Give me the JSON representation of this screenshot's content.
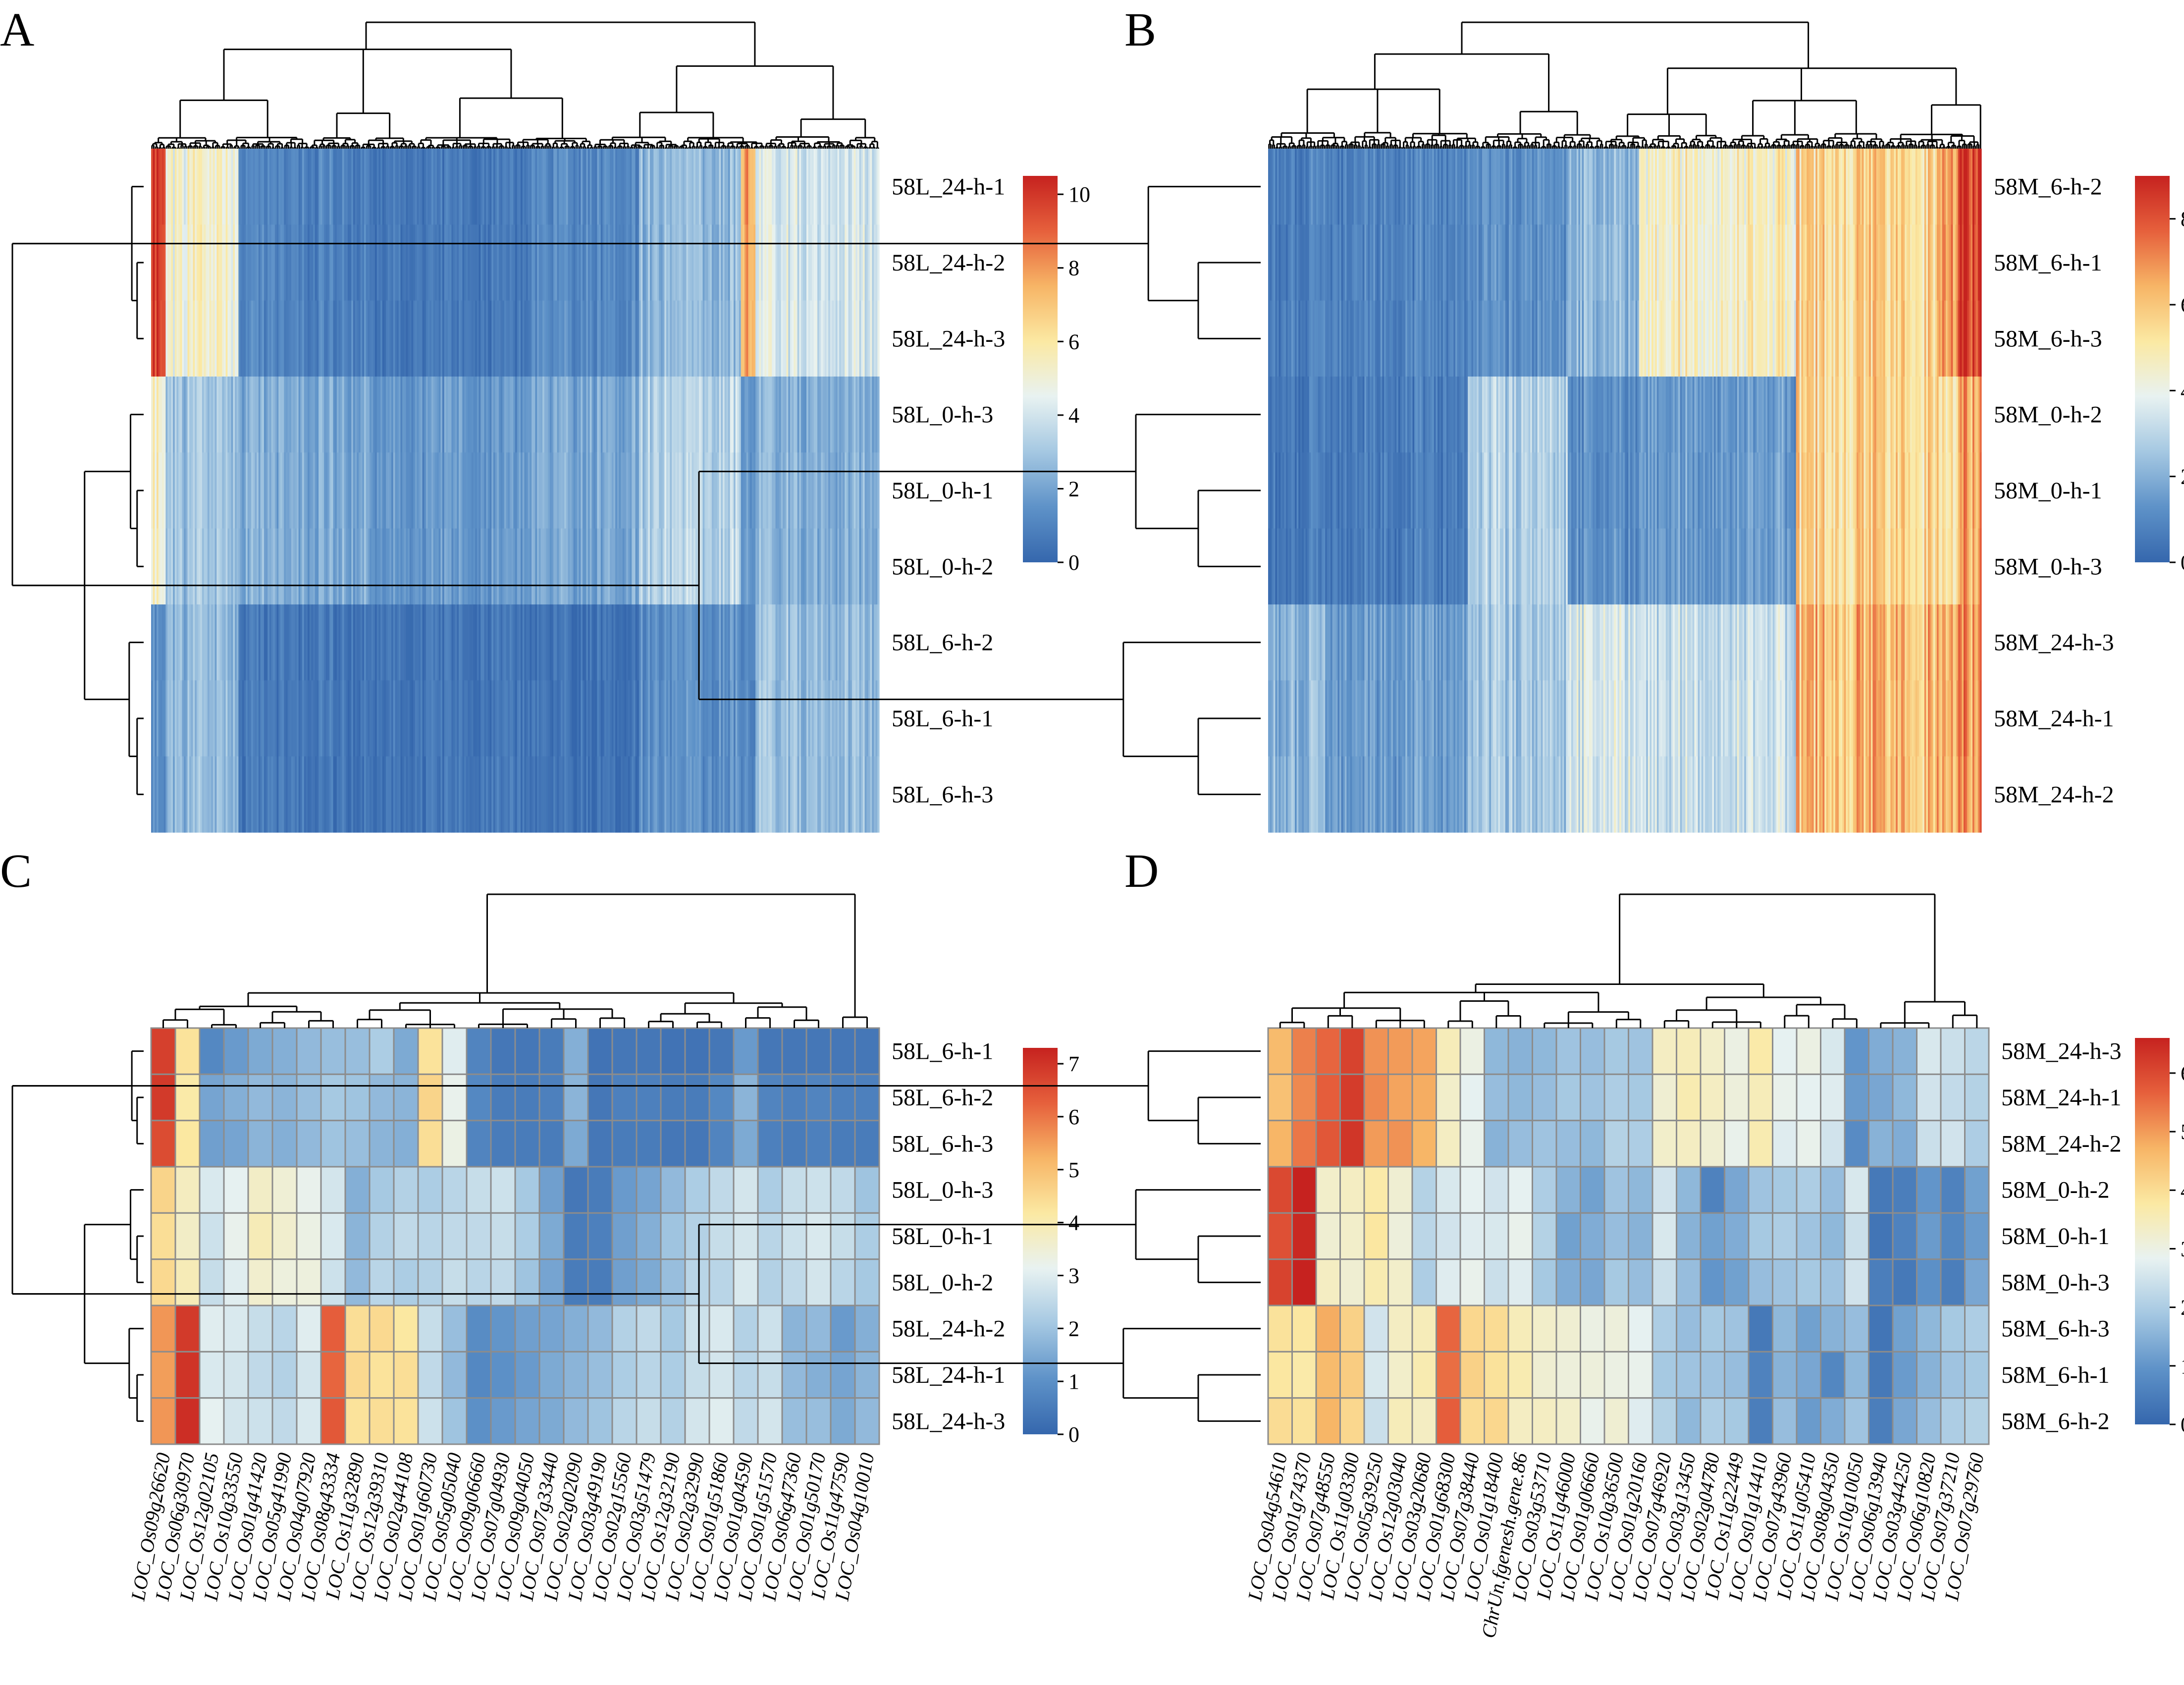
{
  "figure": {
    "panel_labels": [
      "A",
      "B",
      "C",
      "D"
    ]
  },
  "colors": {
    "scale": [
      "#3567ad",
      "#5e92c8",
      "#a5c8e2",
      "#e8f2f1",
      "#fbe9a3",
      "#f7b566",
      "#e6603c",
      "#c6221f"
    ],
    "cell_border": "#8c8c8c"
  },
  "chart_data": [
    {
      "type": "heatmap",
      "panel": "A",
      "rows": [
        "58L_24-h-1",
        "58L_24-h-2",
        "58L_24-h-3",
        "58L_0-h-3",
        "58L_0-h-1",
        "58L_0-h-2",
        "58L_6-h-2",
        "58L_6-h-1",
        "58L_6-h-3"
      ],
      "row_groups": [
        "24 h",
        "0 h",
        "6 h"
      ],
      "n_genes": 400,
      "colorbar": {
        "min": 0,
        "max": 10.5,
        "ticks": [
          0,
          2,
          4,
          6,
          8,
          10
        ]
      },
      "cluster_profile": [
        {
          "gene_share": 0.02,
          "values": [
            10.3,
            5.5,
            1.5
          ]
        },
        {
          "gene_share": 0.1,
          "values": [
            5.0,
            2.8,
            2.5
          ]
        },
        {
          "gene_share": 0.18,
          "values": [
            1.0,
            2.2,
            0.6
          ]
        },
        {
          "gene_share": 0.22,
          "values": [
            0.6,
            1.6,
            0.5
          ]
        },
        {
          "gene_share": 0.15,
          "values": [
            1.2,
            2.1,
            0.4
          ]
        },
        {
          "gene_share": 0.14,
          "values": [
            2.6,
            3.4,
            1.4
          ]
        },
        {
          "gene_share": 0.02,
          "values": [
            8.5,
            2.0,
            1.5
          ]
        },
        {
          "gene_share": 0.17,
          "values": [
            4.2,
            2.4,
            2.8
          ]
        }
      ]
    },
    {
      "type": "heatmap",
      "panel": "B",
      "rows": [
        "58M_6-h-2",
        "58M_6-h-1",
        "58M_6-h-3",
        "58M_0-h-2",
        "58M_0-h-1",
        "58M_0-h-3",
        "58M_24-h-3",
        "58M_24-h-1",
        "58M_24-h-2"
      ],
      "row_groups": [
        "6 h",
        "0 h",
        "24 h"
      ],
      "n_genes": 400,
      "colorbar": {
        "min": 0,
        "max": 9,
        "ticks": [
          0,
          2,
          4,
          6,
          8
        ]
      },
      "cluster_profile": [
        {
          "gene_share": 0.08,
          "values": [
            0.8,
            0.6,
            2.2
          ]
        },
        {
          "gene_share": 0.2,
          "values": [
            0.9,
            0.7,
            1.6
          ]
        },
        {
          "gene_share": 0.14,
          "values": [
            1.2,
            2.8,
            2.6
          ]
        },
        {
          "gene_share": 0.1,
          "values": [
            2.2,
            1.2,
            3.6
          ]
        },
        {
          "gene_share": 0.22,
          "values": [
            4.6,
            1.5,
            3.3
          ]
        },
        {
          "gene_share": 0.2,
          "values": [
            5.6,
            5.6,
            6.2
          ]
        },
        {
          "gene_share": 0.03,
          "values": [
            7.2,
            5.5,
            6.8
          ]
        },
        {
          "gene_share": 0.03,
          "values": [
            8.8,
            6.8,
            7.0
          ]
        }
      ]
    },
    {
      "type": "heatmap",
      "panel": "C",
      "rows": [
        "58L_6-h-1",
        "58L_6-h-2",
        "58L_6-h-3",
        "58L_0-h-3",
        "58L_0-h-1",
        "58L_0-h-2",
        "58L_24-h-2",
        "58L_24-h-1",
        "58L_24-h-3"
      ],
      "columns": [
        "LOC_Os09g26620",
        "LOC_Os06g30970",
        "LOC_Os12g02105",
        "LOC_Os10g33550",
        "LOC_Os01g41420",
        "LOC_Os05g41990",
        "LOC_Os04g07920",
        "LOC_Os08g43334",
        "LOC_Os11g32890",
        "LOC_Os12g39310",
        "LOC_Os02g44108",
        "LOC_Os01g60730",
        "LOC_Os05g05040",
        "LOC_Os09g06660",
        "LOC_Os07g04930",
        "LOC_Os09g04050",
        "LOC_Os07g33440",
        "LOC_Os02g02090",
        "LOC_Os03g49190",
        "LOC_Os02g15560",
        "LOC_Os03g51479",
        "LOC_Os12g32190",
        "LOC_Os02g32990",
        "LOC_Os01g51860",
        "LOC_Os01g04590",
        "LOC_Os01g51570",
        "LOC_Os06g47360",
        "LOC_Os01g50170",
        "LOC_Os11g47590",
        "LOC_Os04g10010"
      ],
      "colorbar": {
        "min": 0,
        "max": 7.3,
        "ticks": [
          0,
          1,
          2,
          3,
          4,
          5,
          6,
          7
        ]
      },
      "values": [
        [
          6.8,
          4.3,
          0.8,
          1.2,
          1.5,
          1.6,
          1.8,
          1.9,
          1.9,
          2.2,
          1.5,
          4.3,
          3.0,
          0.7,
          0.4,
          0.4,
          0.5,
          1.6,
          0.3,
          0.4,
          0.4,
          0.3,
          0.3,
          0.4,
          1.2,
          0.4,
          0.4,
          0.4,
          0.4,
          0.4
        ],
        [
          6.9,
          4.1,
          1.4,
          1.6,
          1.8,
          1.7,
          1.9,
          2.1,
          2.0,
          1.8,
          1.7,
          4.6,
          3.2,
          0.8,
          0.5,
          0.5,
          0.6,
          1.7,
          0.4,
          0.6,
          0.6,
          0.5,
          0.5,
          0.8,
          1.7,
          0.7,
          0.6,
          0.7,
          0.6,
          0.6
        ],
        [
          6.6,
          4.2,
          1.3,
          1.4,
          1.7,
          1.6,
          1.8,
          2.0,
          1.9,
          1.7,
          1.6,
          4.4,
          3.3,
          0.7,
          0.5,
          0.5,
          0.5,
          1.5,
          0.4,
          0.5,
          0.5,
          0.4,
          0.4,
          0.7,
          1.5,
          0.6,
          0.5,
          0.6,
          0.5,
          0.5
        ],
        [
          4.6,
          3.8,
          2.9,
          3.1,
          3.7,
          3.5,
          3.2,
          2.8,
          1.6,
          2.1,
          2.3,
          2.2,
          2.4,
          2.6,
          2.7,
          2.1,
          1.3,
          0.4,
          0.5,
          1.2,
          1.4,
          1.8,
          2.2,
          2.5,
          2.8,
          2.2,
          2.6,
          2.7,
          2.5,
          2.0
        ],
        [
          4.4,
          3.7,
          2.7,
          3.2,
          3.9,
          3.6,
          3.3,
          2.9,
          1.7,
          2.3,
          2.5,
          2.4,
          2.5,
          2.5,
          2.6,
          2.2,
          1.5,
          0.5,
          0.6,
          1.3,
          1.6,
          2.0,
          2.3,
          2.6,
          2.8,
          2.4,
          2.7,
          2.9,
          2.6,
          2.2
        ],
        [
          4.5,
          3.9,
          2.6,
          3.0,
          3.6,
          3.4,
          3.4,
          2.7,
          1.8,
          2.4,
          2.2,
          2.3,
          2.6,
          2.4,
          2.5,
          2.0,
          1.4,
          0.5,
          0.5,
          1.3,
          1.5,
          1.9,
          2.4,
          2.4,
          2.9,
          2.3,
          2.5,
          2.8,
          2.4,
          2.1
        ],
        [
          5.6,
          6.9,
          3.0,
          2.9,
          2.6,
          2.4,
          3.0,
          6.3,
          4.4,
          4.5,
          4.2,
          2.6,
          1.9,
          0.9,
          1.1,
          1.3,
          1.4,
          1.6,
          1.8,
          2.3,
          2.5,
          2.1,
          2.7,
          2.9,
          2.3,
          2.7,
          1.7,
          1.8,
          1.2,
          1.6
        ],
        [
          5.5,
          7.0,
          2.9,
          2.8,
          2.5,
          2.3,
          2.8,
          6.2,
          4.5,
          4.3,
          4.4,
          2.5,
          1.8,
          0.8,
          1.0,
          1.2,
          1.5,
          1.7,
          1.9,
          2.2,
          2.4,
          2.2,
          2.6,
          2.8,
          2.4,
          2.6,
          1.8,
          1.6,
          1.4,
          1.7
        ],
        [
          5.6,
          7.1,
          3.1,
          2.8,
          2.7,
          2.5,
          2.9,
          6.4,
          4.3,
          4.4,
          4.3,
          2.7,
          2.0,
          1.0,
          1.2,
          1.4,
          1.5,
          1.8,
          2.0,
          2.4,
          2.6,
          2.3,
          2.8,
          3.0,
          2.5,
          2.8,
          1.9,
          1.9,
          1.5,
          1.8
        ]
      ]
    },
    {
      "type": "heatmap",
      "panel": "D",
      "rows": [
        "58M_24-h-3",
        "58M_24-h-1",
        "58M_24-h-2",
        "58M_0-h-2",
        "58M_0-h-1",
        "58M_0-h-3",
        "58M_6-h-3",
        "58M_6-h-1",
        "58M_6-h-2"
      ],
      "columns": [
        "LOC_Os04g54610",
        "LOC_Os01g74370",
        "LOC_Os07g48550",
        "LOC_Os11g03300",
        "LOC_Os05g39250",
        "LOC_Os12g03040",
        "LOC_Os03g20680",
        "LOC_Os01g68300",
        "LOC_Os07g38440",
        "LOC_Os01g18400",
        "ChrUn.fgenesh.gene.86",
        "LOC_Os03g53710",
        "LOC_Os11g46000",
        "LOC_Os01g06660",
        "LOC_Os10g36500",
        "LOC_Os01g20160",
        "LOC_Os07g46920",
        "LOC_Os03g13450",
        "LOC_Os02g04780",
        "LOC_Os11g22449",
        "LOC_Os01g14410",
        "LOC_Os07g43960",
        "LOC_Os11g05410",
        "LOC_Os08g04350",
        "LOC_Os10g10050",
        "LOC_Os06g13940",
        "LOC_Os03g44250",
        "LOC_Os06g10820",
        "LOC_Os07g37210",
        "LOC_Os07g29760"
      ],
      "colorbar": {
        "min": 0,
        "max": 6.6,
        "ticks": [
          0,
          1,
          2,
          3,
          4,
          5,
          6
        ]
      },
      "values": [
        [
          4.6,
          5.3,
          5.6,
          6.1,
          5.1,
          5.0,
          4.9,
          3.5,
          3.0,
          1.6,
          1.5,
          1.6,
          1.8,
          1.7,
          1.9,
          1.8,
          3.4,
          3.5,
          3.3,
          3.0,
          3.7,
          2.8,
          3.0,
          2.6,
          1.0,
          1.4,
          1.5,
          2.6,
          2.4,
          2.2
        ],
        [
          4.5,
          5.2,
          5.7,
          6.2,
          5.2,
          4.9,
          4.8,
          3.3,
          2.8,
          1.7,
          1.6,
          1.7,
          1.9,
          1.8,
          2.0,
          1.9,
          3.2,
          3.6,
          3.4,
          3.1,
          3.5,
          2.9,
          2.8,
          2.7,
          1.1,
          1.3,
          1.6,
          2.5,
          2.3,
          2.1
        ],
        [
          4.7,
          5.4,
          5.8,
          6.3,
          5.0,
          5.1,
          4.7,
          3.4,
          2.9,
          1.5,
          1.7,
          1.8,
          1.7,
          1.6,
          2.1,
          2.0,
          3.3,
          3.4,
          3.2,
          2.9,
          3.6,
          2.7,
          2.9,
          2.5,
          0.8,
          1.5,
          1.4,
          2.4,
          2.5,
          2.0
        ],
        [
          6.0,
          6.6,
          3.3,
          3.4,
          3.7,
          3.2,
          2.1,
          2.6,
          2.8,
          2.5,
          2.8,
          2.0,
          1.5,
          1.2,
          1.8,
          1.6,
          2.5,
          1.6,
          0.6,
          1.3,
          1.8,
          1.9,
          2.0,
          1.7,
          2.6,
          0.4,
          0.5,
          1.0,
          0.6,
          1.2
        ],
        [
          5.9,
          6.5,
          3.2,
          3.3,
          3.8,
          3.1,
          2.2,
          2.5,
          2.7,
          2.6,
          2.9,
          2.1,
          1.2,
          1.4,
          1.7,
          1.5,
          2.6,
          1.5,
          1.2,
          1.4,
          1.9,
          2.0,
          1.8,
          1.6,
          2.4,
          0.3,
          0.6,
          1.1,
          0.7,
          1.1
        ],
        [
          6.1,
          6.7,
          3.4,
          3.2,
          3.6,
          3.3,
          2.0,
          2.7,
          2.9,
          2.4,
          2.7,
          1.9,
          1.4,
          1.3,
          1.9,
          1.7,
          2.4,
          1.7,
          1.0,
          1.2,
          1.7,
          1.8,
          1.9,
          1.8,
          2.5,
          0.5,
          0.4,
          0.9,
          0.5,
          1.3
        ],
        [
          3.9,
          3.8,
          4.8,
          4.2,
          2.5,
          3.4,
          3.5,
          5.6,
          4.1,
          4.0,
          3.5,
          3.3,
          3.2,
          3.0,
          3.1,
          2.8,
          2.0,
          1.7,
          1.9,
          1.8,
          0.4,
          1.6,
          1.2,
          1.5,
          1.7,
          0.3,
          1.2,
          1.6,
          1.9,
          2.0
        ],
        [
          3.8,
          3.7,
          4.6,
          4.3,
          2.6,
          3.3,
          3.6,
          5.5,
          4.2,
          3.9,
          3.6,
          3.2,
          3.1,
          3.1,
          3.0,
          2.9,
          1.9,
          1.8,
          1.8,
          1.7,
          0.6,
          1.5,
          1.3,
          0.7,
          1.6,
          0.4,
          1.1,
          1.5,
          1.8,
          1.9
        ],
        [
          4.0,
          3.9,
          4.7,
          4.1,
          2.4,
          3.5,
          3.4,
          5.7,
          4.0,
          4.1,
          3.4,
          3.4,
          3.3,
          2.9,
          3.2,
          2.7,
          2.1,
          1.6,
          2.0,
          1.9,
          0.5,
          1.7,
          1.1,
          1.4,
          1.8,
          0.5,
          1.3,
          1.7,
          2.0,
          2.1
        ]
      ]
    }
  ]
}
